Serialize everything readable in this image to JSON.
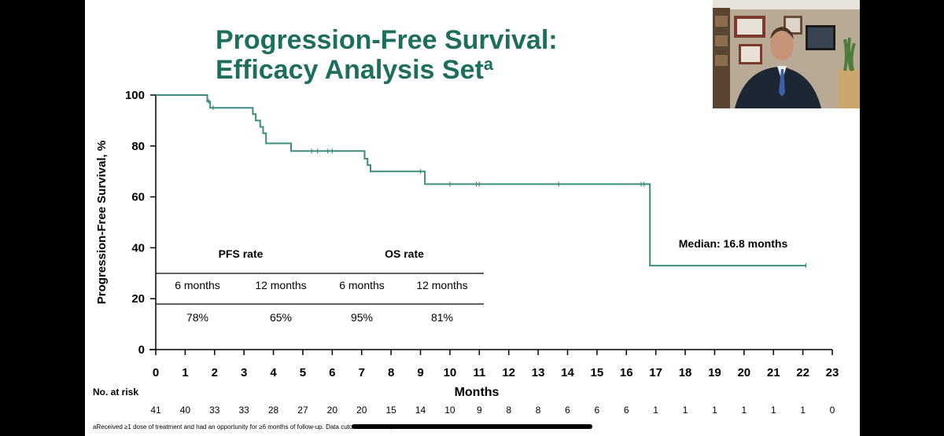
{
  "slide": {
    "title_line1": "Progression-Free Survival:",
    "title_line2": "Efficacy Analysis Set",
    "title_superscript": "a",
    "footnote": "aReceived ≥1 dose of treatment and had an opportunity for  ≥6 months of follow-up. Data cutoff: October 15, 2020."
  },
  "colors": {
    "title": "#1e6e5e",
    "curve": "#3d8c7e",
    "background": "#ffffff",
    "frame": "#000000"
  },
  "chart_data": {
    "type": "line",
    "title": "",
    "xlabel": "Months",
    "ylabel": "Progression-Free Survival, %",
    "xlim": [
      0,
      23
    ],
    "ylim": [
      0,
      100
    ],
    "x_ticks": [
      0,
      1,
      2,
      3,
      4,
      5,
      6,
      7,
      8,
      9,
      10,
      11,
      12,
      13,
      14,
      15,
      16,
      17,
      18,
      19,
      20,
      21,
      22,
      23
    ],
    "y_ticks": [
      0,
      20,
      40,
      60,
      80,
      100
    ],
    "grid": false,
    "step": true,
    "series": [
      {
        "name": "",
        "x": [
          0,
          1.75,
          1.85,
          3.3,
          3.4,
          3.55,
          3.65,
          3.75,
          4.6,
          7.1,
          7.2,
          7.3,
          9.15,
          16.8,
          22.1
        ],
        "y": [
          100,
          97.5,
          95,
          92.5,
          90,
          87.5,
          85,
          81,
          78,
          75,
          72.5,
          70,
          65,
          33,
          33
        ]
      }
    ],
    "censor_marks": [
      {
        "x": 1.8,
        "y": 97.5
      },
      {
        "x": 1.95,
        "y": 95
      },
      {
        "x": 5.3,
        "y": 78
      },
      {
        "x": 5.5,
        "y": 78
      },
      {
        "x": 5.85,
        "y": 78
      },
      {
        "x": 6.0,
        "y": 78
      },
      {
        "x": 9.0,
        "y": 70
      },
      {
        "x": 10.0,
        "y": 65
      },
      {
        "x": 10.9,
        "y": 65
      },
      {
        "x": 11.0,
        "y": 65
      },
      {
        "x": 13.7,
        "y": 65
      },
      {
        "x": 16.5,
        "y": 65
      },
      {
        "x": 16.6,
        "y": 65
      },
      {
        "x": 22.1,
        "y": 33
      }
    ],
    "annotations": [
      "Median: 16.8 months"
    ],
    "at_risk_label": "No. at risk",
    "at_risk": [
      41,
      40,
      33,
      33,
      28,
      27,
      20,
      20,
      15,
      14,
      10,
      9,
      8,
      8,
      6,
      6,
      6,
      1,
      1,
      1,
      1,
      1,
      1,
      0
    ],
    "rate_table": {
      "groups": [
        "PFS rate",
        "OS rate"
      ],
      "headers": [
        "6 months",
        "12 months",
        "6 months",
        "12 months"
      ],
      "values": [
        "78%",
        "65%",
        "95%",
        "81%"
      ]
    }
  }
}
